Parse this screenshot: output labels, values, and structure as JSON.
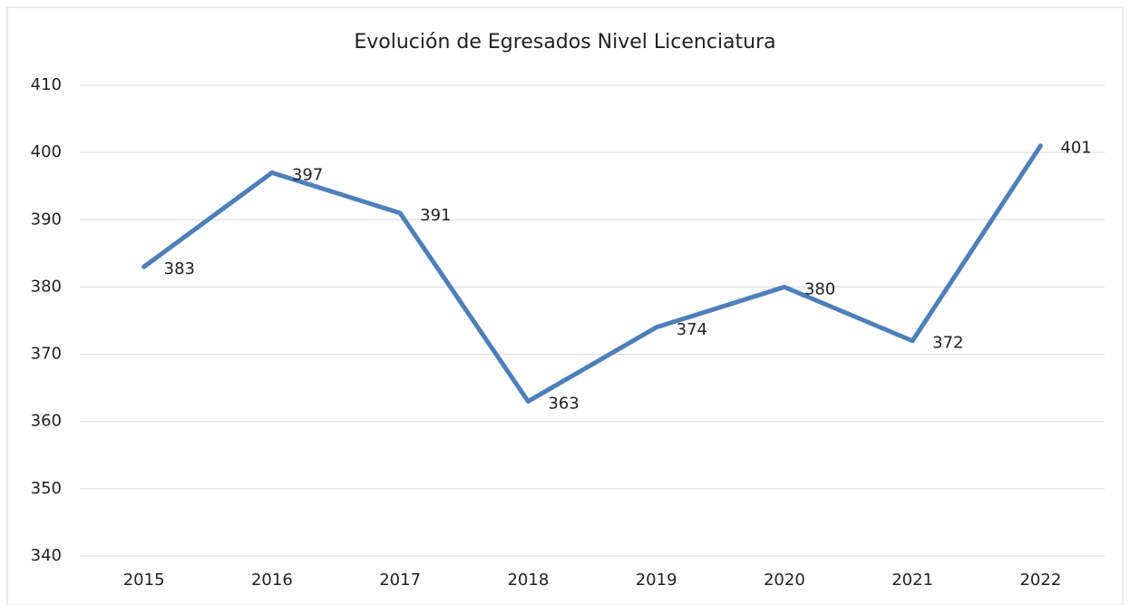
{
  "chart_data": {
    "type": "line",
    "title": "Evolución de Egresados Nivel Licenciatura",
    "categories": [
      "2015",
      "2016",
      "2017",
      "2018",
      "2019",
      "2020",
      "2021",
      "2022"
    ],
    "series": [
      {
        "name": "Egresados",
        "color": "#4f7fb8",
        "values": [
          383,
          397,
          391,
          363,
          374,
          380,
          372,
          401
        ]
      }
    ],
    "ylim": [
      340,
      410
    ],
    "yticks": [
      340,
      350,
      360,
      370,
      380,
      390,
      400,
      410
    ],
    "grid": true
  }
}
